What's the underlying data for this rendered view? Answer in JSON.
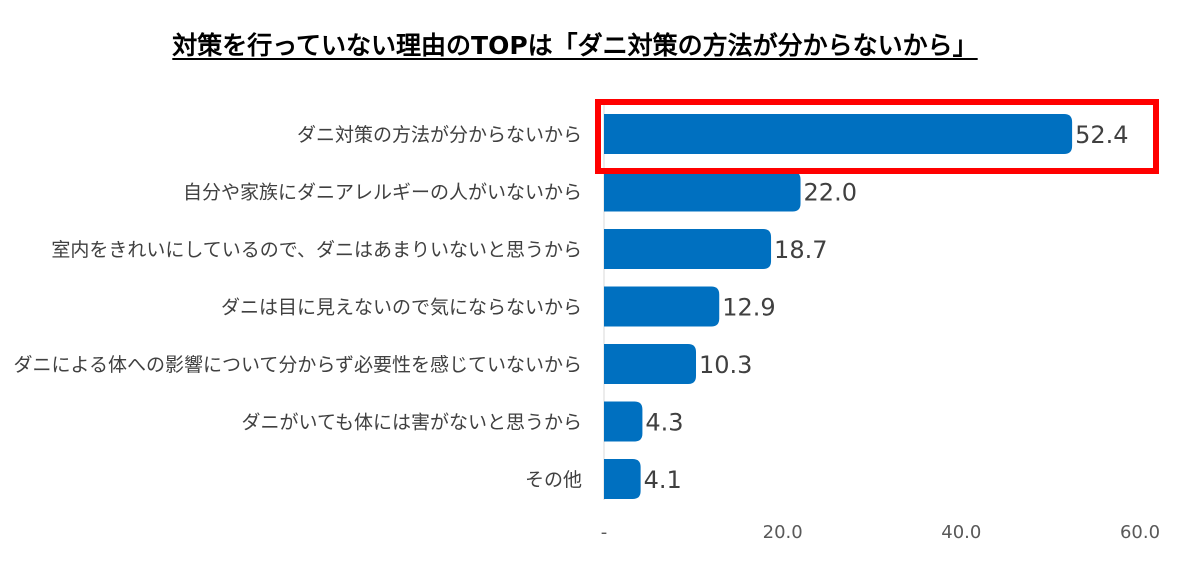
{
  "chart_data": {
    "type": "bar",
    "orientation": "horizontal",
    "title": "対策を行っていない理由のTOPは「ダニ対策の方法が分からないから」",
    "categories": [
      "ダニ対策の方法が分からないから",
      "自分や家族にダニアレルギーの人がいないから",
      "室内をきれいにしているので、ダニはあまりいないと思うから",
      "ダニは目に見えないので気にならないから",
      "ダニによる体への影響について分からず必要性を感じていないから",
      "ダニがいても体には害がないと思うから",
      "その他"
    ],
    "values": [
      52.4,
      22.0,
      18.7,
      12.9,
      10.3,
      4.3,
      4.1
    ],
    "value_labels": [
      "52.4",
      "22.0",
      "18.7",
      "12.9",
      "10.3",
      "4.3",
      "4.1"
    ],
    "xlim": [
      0,
      60
    ],
    "ticks": [
      0,
      20,
      40,
      60
    ],
    "tick_labels": [
      "-",
      "20.0",
      "40.0",
      "60.0"
    ],
    "bar_color": "#0070C0",
    "highlight_color": "#FF0000",
    "highlight_index": 0,
    "grid": false,
    "legend": "none"
  }
}
